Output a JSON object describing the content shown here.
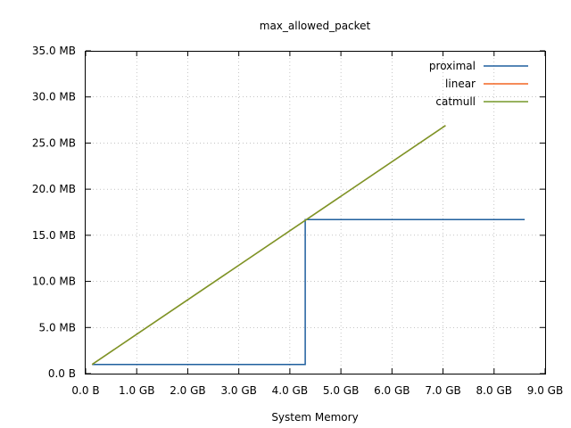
{
  "chart_data": {
    "type": "line",
    "title": "max_allowed_packet",
    "xlabel": "System Memory",
    "ylabel": "",
    "xlim": [
      0,
      9
    ],
    "ylim": [
      0,
      35
    ],
    "x_unit": "GB",
    "y_unit": "MB",
    "x_ticks": [
      {
        "value": 0,
        "label": "0.0  B"
      },
      {
        "value": 1,
        "label": "1.0 GB"
      },
      {
        "value": 2,
        "label": "2.0 GB"
      },
      {
        "value": 3,
        "label": "3.0 GB"
      },
      {
        "value": 4,
        "label": "4.0 GB"
      },
      {
        "value": 5,
        "label": "5.0 GB"
      },
      {
        "value": 6,
        "label": "6.0 GB"
      },
      {
        "value": 7,
        "label": "7.0 GB"
      },
      {
        "value": 8,
        "label": "8.0 GB"
      },
      {
        "value": 9,
        "label": "9.0 GB"
      }
    ],
    "y_ticks": [
      {
        "value": 0,
        "label": "0.0  B"
      },
      {
        "value": 5,
        "label": "5.0 MB"
      },
      {
        "value": 10,
        "label": "10.0 MB"
      },
      {
        "value": 15,
        "label": "15.0 MB"
      },
      {
        "value": 20,
        "label": "20.0 MB"
      },
      {
        "value": 25,
        "label": "25.0 MB"
      },
      {
        "value": 30,
        "label": "30.0 MB"
      },
      {
        "value": 35,
        "label": "35.0 MB"
      }
    ],
    "grid": true,
    "legend_position": "top-right",
    "series": [
      {
        "name": "proximal",
        "color": "#1f5f9e",
        "points": [
          [
            0.125,
            1
          ],
          [
            4.3,
            1
          ],
          [
            4.3,
            16.7
          ],
          [
            8.6,
            16.7
          ]
        ]
      },
      {
        "name": "linear",
        "color": "#f26522",
        "points": [
          [
            0.125,
            1
          ],
          [
            7.05,
            26.9
          ]
        ]
      },
      {
        "name": "catmull",
        "color": "#77992a",
        "points": [
          [
            0.125,
            1
          ],
          [
            7.05,
            26.9
          ]
        ]
      }
    ]
  }
}
